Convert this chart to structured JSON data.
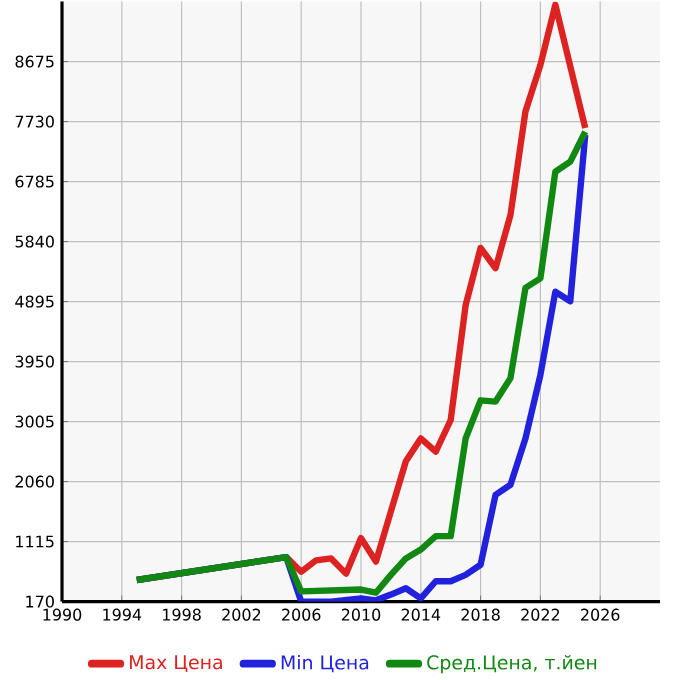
{
  "chart_data": {
    "type": "line",
    "xlim": [
      1990,
      2030
    ],
    "xticks": [
      1990,
      1994,
      1998,
      2002,
      2006,
      2010,
      2014,
      2018,
      2022,
      2026
    ],
    "ylim": [
      170,
      9620
    ],
    "yticks": [
      170,
      1115,
      2060,
      3005,
      3950,
      4895,
      5840,
      6785,
      7730,
      8675
    ],
    "grid": true,
    "legend": "bottom",
    "marker": "none",
    "line_style": "solid",
    "series": [
      {
        "name": "Max Цена",
        "color": "#dd2222",
        "x": [
          1995,
          2005,
          2006,
          2007,
          2008,
          2009,
          2010,
          2011,
          2012,
          2013,
          2014,
          2015,
          2016,
          2017,
          2018,
          2019,
          2020,
          2021,
          2022,
          2023,
          2025
        ],
        "values": [
          510,
          870,
          640,
          820,
          850,
          610,
          1170,
          800,
          1590,
          2380,
          2740,
          2530,
          3030,
          4840,
          5740,
          5420,
          6260,
          7890,
          8620,
          9570,
          7630
        ]
      },
      {
        "name": "Min Цена",
        "color": "#2222dd",
        "x": [
          1995,
          2005,
          2006,
          2008,
          2010,
          2011,
          2012,
          2013,
          2014,
          2015,
          2016,
          2017,
          2018,
          2019,
          2020,
          2021,
          2022,
          2023,
          2024,
          2025
        ],
        "values": [
          510,
          870,
          170,
          170,
          220,
          190,
          280,
          380,
          220,
          490,
          490,
          590,
          750,
          1850,
          2010,
          2740,
          3740,
          5050,
          4900,
          7520
        ]
      },
      {
        "name": "Сред.Цена, т.йен",
        "color": "#118811",
        "x": [
          1995,
          2005,
          2006,
          2010,
          2011,
          2012,
          2013,
          2014,
          2015,
          2016,
          2017,
          2018,
          2019,
          2020,
          2021,
          2022,
          2023,
          2024,
          2025
        ],
        "values": [
          510,
          870,
          330,
          360,
          310,
          590,
          850,
          990,
          1200,
          1200,
          2740,
          3340,
          3320,
          3690,
          5110,
          5260,
          6940,
          7100,
          7570
        ]
      }
    ]
  }
}
